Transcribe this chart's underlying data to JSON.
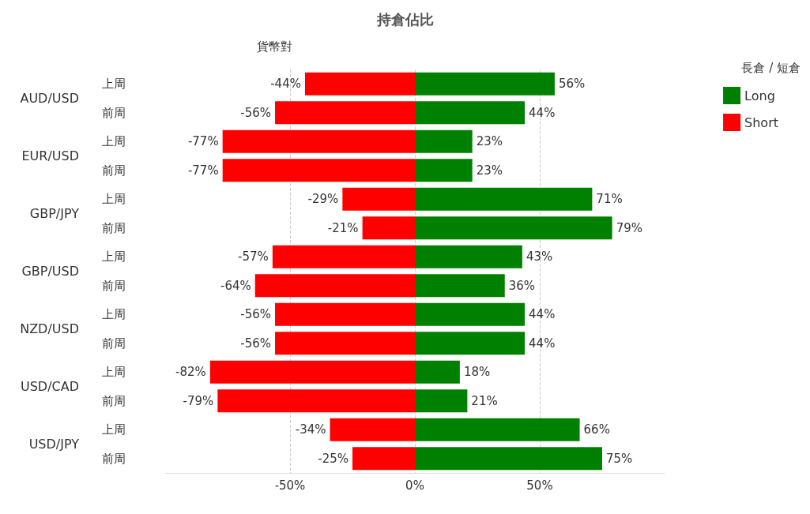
{
  "chart_data": {
    "type": "bar",
    "title": "持倉佔比",
    "ylabel": "貨幣對",
    "legend_title": "長倉 / 短倉",
    "orientation": "horizontal",
    "stacked": true,
    "legend": "top right",
    "grid": "x",
    "categories": [
      "上周",
      "前周",
      "上周",
      "前周",
      "上周",
      "前周",
      "上周",
      "前周",
      "上周",
      "前周",
      "上周",
      "前周",
      "上周",
      "前周"
    ],
    "annotations": [
      "AUD/USD",
      "EUR/USD",
      "GBP/JPY",
      "GBP/USD",
      "NZD/USD",
      "USD/CAD",
      "USD/JPY"
    ],
    "xlim": [
      -100,
      100
    ],
    "xticks": [
      {
        "value": -50,
        "label": "-50%"
      },
      {
        "value": 0,
        "label": "0%"
      },
      {
        "value": 50,
        "label": "50%"
      }
    ],
    "series": [
      {
        "name": "Long",
        "color": "#008000",
        "values": [
          56,
          44,
          23,
          23,
          71,
          79,
          43,
          36,
          44,
          44,
          18,
          21,
          66,
          75
        ],
        "value_labels": [
          "56%",
          "44%",
          "23%",
          "23%",
          "71%",
          "79%",
          "43%",
          "36%",
          "44%",
          "44%",
          "18%",
          "21%",
          "66%",
          "75%"
        ]
      },
      {
        "name": "Short",
        "color": "#ff0000",
        "values": [
          -44,
          -56,
          -77,
          -77,
          -29,
          -21,
          -57,
          -64,
          -56,
          -56,
          -82,
          -79,
          -34,
          -25
        ],
        "value_labels": [
          "-44%",
          "-56%",
          "-77%",
          "-77%",
          "-29%",
          "-21%",
          "-57%",
          "-64%",
          "-56%",
          "-56%",
          "-82%",
          "-79%",
          "-34%",
          "-25%"
        ]
      }
    ]
  }
}
